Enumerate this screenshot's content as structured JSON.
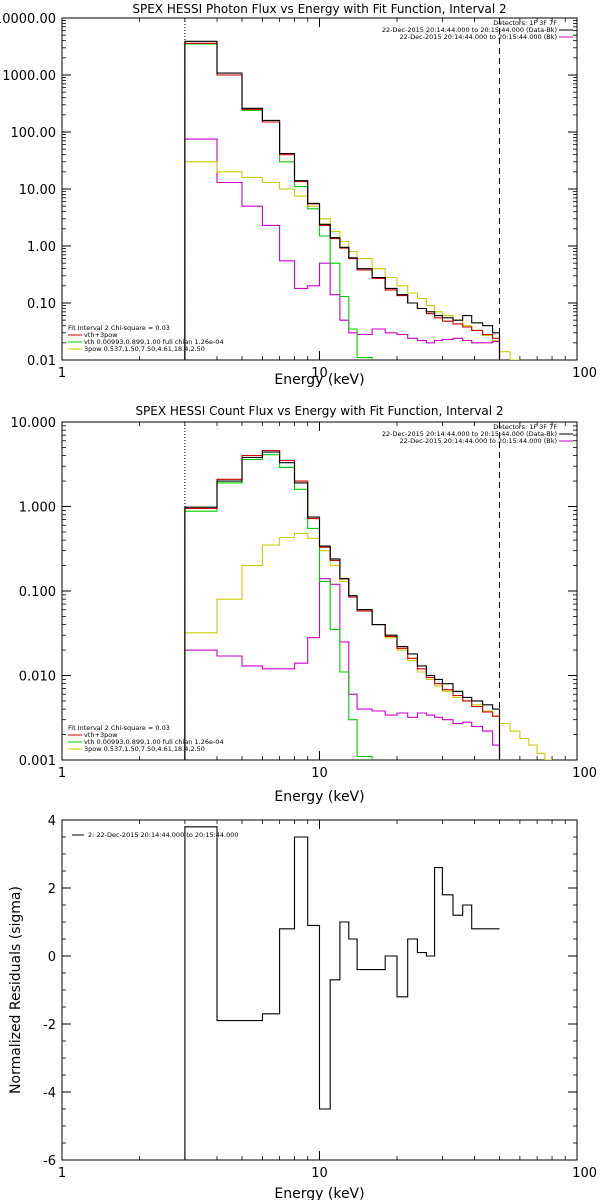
{
  "chart_data": [
    {
      "type": "line",
      "panel": "photon",
      "title": "SPEX HESSI Photon Flux vs Energy with Fit Function, Interval 2",
      "xlabel": "Energy (keV)",
      "ylabel": "",
      "xscale": "log",
      "yscale": "log",
      "xlim": [
        1,
        100
      ],
      "ylim": [
        0.01,
        10000
      ],
      "xticks": [
        {
          "v": 1,
          "label": "1"
        },
        {
          "v": 10,
          "label": "10"
        },
        {
          "v": 100,
          "label": "100"
        }
      ],
      "yticks": [
        {
          "v": 0.01,
          "label": "0.01"
        },
        {
          "v": 0.1,
          "label": "0.10"
        },
        {
          "v": 1,
          "label": "1.00"
        },
        {
          "v": 10,
          "label": "10.00"
        },
        {
          "v": 100,
          "label": "100.00"
        },
        {
          "v": 1000,
          "label": "1000.00"
        },
        {
          "v": 10000,
          "label": "10000.00"
        }
      ],
      "vlines": [
        {
          "x": 3,
          "style": "dotted"
        },
        {
          "x": 50,
          "style": "dashed"
        }
      ],
      "legend_top_right": [
        {
          "text": "Detectors: 1F 3F 7F",
          "color": ""
        },
        {
          "text": "22-Dec-2015 20:14:44.000 to 20:15:44.000 (Data-Bk)",
          "color": "#000000"
        },
        {
          "text": "22-Dec-2015 20:14:44.000 to 20:15:44.000 (Bk)",
          "color": "#cc00cc"
        }
      ],
      "legend_bottom_left": [
        {
          "text": "Fit Interval 2   Chi-square = 0.03",
          "color": ""
        },
        {
          "text": "vth+3pow",
          "color": "#cc0000"
        },
        {
          "text": "vth 0.00993,0.899,1.00  full chian 1.26e-04",
          "color": "#00cc00"
        },
        {
          "text": "3pow 0.537,1.50,7.50,4.61,18.4,2.50",
          "color": "#cccc00"
        }
      ],
      "edges": [
        3,
        4,
        5,
        6,
        7,
        8,
        9,
        10,
        11,
        12,
        13,
        14,
        16,
        18,
        20,
        22,
        24,
        26,
        28,
        30,
        33,
        36,
        39,
        43,
        47,
        50,
        55,
        60
      ],
      "series": [
        {
          "name": "Data-Bk",
          "color": "#000000",
          "values": [
            3900,
            1080,
            260,
            160,
            42,
            14,
            5.6,
            2.4,
            1.4,
            0.95,
            0.62,
            0.4,
            0.28,
            0.18,
            0.14,
            0.1,
            0.08,
            0.07,
            0.06,
            0.055,
            0.05,
            0.06,
            0.045,
            0.04,
            0.03,
            null,
            null
          ]
        },
        {
          "name": "vth+3pow",
          "color": "#cc0000",
          "values": [
            3600,
            1000,
            250,
            150,
            40,
            13.5,
            5.5,
            2.3,
            1.35,
            0.92,
            0.6,
            0.38,
            0.27,
            0.17,
            0.135,
            0.1,
            0.08,
            0.065,
            0.055,
            0.048,
            0.043,
            0.038,
            0.033,
            0.028,
            0.024,
            null,
            null
          ]
        },
        {
          "name": "vth",
          "color": "#00cc00",
          "values": [
            3500,
            1000,
            240,
            150,
            30,
            11,
            4.5,
            1.5,
            0.5,
            0.13,
            0.035,
            0.011,
            null,
            null,
            null,
            null,
            null,
            null,
            null,
            null,
            null,
            null,
            null,
            null,
            null,
            null,
            null
          ]
        },
        {
          "name": "3pow",
          "color": "#cccc00",
          "values": [
            30,
            20,
            16,
            13,
            10,
            7.5,
            5,
            3,
            1.8,
            1.2,
            0.8,
            0.6,
            0.4,
            0.28,
            0.2,
            0.15,
            0.12,
            0.09,
            0.07,
            0.06,
            0.05,
            0.04,
            0.033,
            0.027,
            0.022,
            0.014,
            0.01
          ]
        },
        {
          "name": "Bk",
          "color": "#cc00cc",
          "values": [
            75,
            13,
            5,
            2.3,
            0.55,
            0.18,
            0.2,
            0.5,
            0.14,
            0.05,
            0.03,
            0.028,
            0.035,
            0.03,
            0.028,
            0.024,
            0.022,
            0.02,
            0.022,
            0.023,
            0.024,
            0.022,
            0.02,
            0.02,
            0.021,
            null,
            null
          ]
        }
      ]
    },
    {
      "type": "line",
      "panel": "count",
      "title": "SPEX HESSI Count Flux vs Energy with Fit Function, Interval 2",
      "xlabel": "Energy (keV)",
      "ylabel": "",
      "xscale": "log",
      "yscale": "log",
      "xlim": [
        1,
        100
      ],
      "ylim": [
        0.001,
        10
      ],
      "xticks": [
        {
          "v": 1,
          "label": "1"
        },
        {
          "v": 10,
          "label": "10"
        },
        {
          "v": 100,
          "label": "100"
        }
      ],
      "yticks": [
        {
          "v": 0.001,
          "label": "0.001"
        },
        {
          "v": 0.01,
          "label": "0.010"
        },
        {
          "v": 0.1,
          "label": "0.100"
        },
        {
          "v": 1,
          "label": "1.000"
        },
        {
          "v": 10,
          "label": "10.000"
        }
      ],
      "vlines": [
        {
          "x": 3,
          "style": "dotted"
        },
        {
          "x": 50,
          "style": "dashed"
        }
      ],
      "legend_top_right": [
        {
          "text": "Detectors: 1F 3F 7F",
          "color": ""
        },
        {
          "text": "22-Dec-2015 20:14:44.000 to 20:15:44.000 (Data-Bk)",
          "color": "#000000"
        },
        {
          "text": "22-Dec-2015 20:14:44.000 to 20:15:44.000 (Bk)",
          "color": "#cc00cc"
        }
      ],
      "legend_bottom_left": [
        {
          "text": "Fit Interval 2   Chi-square = 0.03",
          "color": ""
        },
        {
          "text": "vth+3pow",
          "color": "#cc0000"
        },
        {
          "text": "vth 0.00993,0.899,1.00  full chian 1.26e-04",
          "color": "#00cc00"
        },
        {
          "text": "3pow 0.537,1.50,7.50,4.61,18.4,2.50",
          "color": "#cccc00"
        }
      ],
      "edges": [
        3,
        4,
        5,
        6,
        7,
        8,
        9,
        10,
        11,
        12,
        13,
        14,
        16,
        18,
        20,
        22,
        24,
        26,
        28,
        30,
        33,
        36,
        39,
        43,
        47,
        50,
        55,
        60,
        65,
        70,
        75,
        80
      ],
      "series": [
        {
          "name": "Data-Bk",
          "color": "#000000",
          "values": [
            0.98,
            2.0,
            3.8,
            4.4,
            3.3,
            1.9,
            0.75,
            0.34,
            0.24,
            0.14,
            0.088,
            0.06,
            0.04,
            0.03,
            0.022,
            0.018,
            0.013,
            0.01,
            0.009,
            0.008,
            0.0065,
            0.0055,
            0.005,
            0.0045,
            0.004,
            null,
            null,
            null,
            null,
            null,
            null
          ]
        },
        {
          "name": "vth+3pow",
          "color": "#cc0000",
          "values": [
            0.95,
            2.1,
            4.0,
            4.6,
            3.5,
            2.0,
            0.72,
            0.33,
            0.23,
            0.14,
            0.085,
            0.058,
            0.04,
            0.029,
            0.021,
            0.016,
            0.012,
            0.0095,
            0.008,
            0.0068,
            0.0058,
            0.005,
            0.0043,
            0.0037,
            0.0033,
            null,
            null,
            null,
            null,
            null,
            null
          ]
        },
        {
          "name": "vth",
          "color": "#00cc00",
          "values": [
            0.88,
            1.9,
            3.6,
            4.1,
            2.9,
            1.6,
            0.55,
            0.13,
            0.035,
            0.011,
            0.003,
            0.0011,
            null,
            null,
            null,
            null,
            null,
            null,
            null,
            null,
            null,
            null,
            null,
            null,
            null,
            null,
            null,
            null,
            null,
            null,
            null
          ]
        },
        {
          "name": "3pow",
          "color": "#cccc00",
          "values": [
            0.032,
            0.08,
            0.2,
            0.35,
            0.43,
            0.48,
            0.42,
            0.3,
            0.2,
            0.13,
            0.085,
            0.06,
            0.04,
            0.028,
            0.02,
            0.015,
            0.011,
            0.009,
            0.0075,
            0.0065,
            0.0055,
            0.005,
            0.0045,
            0.0038,
            0.0033,
            0.0027,
            0.0022,
            0.0018,
            0.0015,
            0.0012,
            0.001
          ]
        },
        {
          "name": "Bk",
          "color": "#cc00cc",
          "values": [
            0.02,
            0.017,
            0.013,
            0.012,
            0.012,
            0.014,
            0.028,
            0.14,
            0.12,
            0.025,
            0.006,
            0.004,
            0.0038,
            0.0034,
            0.0036,
            0.0032,
            0.0036,
            0.0034,
            0.0032,
            0.003,
            0.0027,
            0.0028,
            0.0025,
            0.0022,
            0.0015,
            null,
            null,
            null,
            null,
            null,
            null
          ]
        }
      ]
    },
    {
      "type": "line",
      "panel": "residuals",
      "title": "",
      "xlabel": "Energy (keV)",
      "ylabel": "Normalized Residuals (sigma)",
      "xscale": "log",
      "yscale": "linear",
      "xlim": [
        1,
        100
      ],
      "ylim": [
        -6,
        4
      ],
      "xticks": [
        {
          "v": 1,
          "label": "1"
        },
        {
          "v": 10,
          "label": "10"
        },
        {
          "v": 100,
          "label": "100"
        }
      ],
      "yticks": [
        {
          "v": -6,
          "label": "-6"
        },
        {
          "v": -4,
          "label": "-4"
        },
        {
          "v": -2,
          "label": "-2"
        },
        {
          "v": 0,
          "label": "0"
        },
        {
          "v": 2,
          "label": "2"
        },
        {
          "v": 4,
          "label": "4"
        }
      ],
      "vlines": [],
      "legend_top_left": [
        {
          "text": "2: 22-Dec-2015 20:14:44.000 to 20:15:44.000",
          "color": "#000000"
        }
      ],
      "edges": [
        3,
        4,
        5,
        6,
        7,
        8,
        9,
        10,
        11,
        12,
        13,
        14,
        16,
        18,
        20,
        22,
        24,
        26,
        28,
        30,
        33,
        36,
        39,
        43,
        47,
        50
      ],
      "series": [
        {
          "name": "2: 22-Dec-2015 20:14:44.000 to 20:15:44.000",
          "color": "#000000",
          "values": [
            3.8,
            -1.9,
            -1.9,
            -1.7,
            0.8,
            3.5,
            0.9,
            -4.5,
            -0.7,
            1.0,
            0.5,
            -0.4,
            -0.4,
            0.0,
            -1.2,
            0.5,
            0.1,
            0.0,
            2.6,
            1.8,
            1.2,
            1.5,
            0.8,
            0.8,
            0.8
          ]
        }
      ]
    }
  ]
}
